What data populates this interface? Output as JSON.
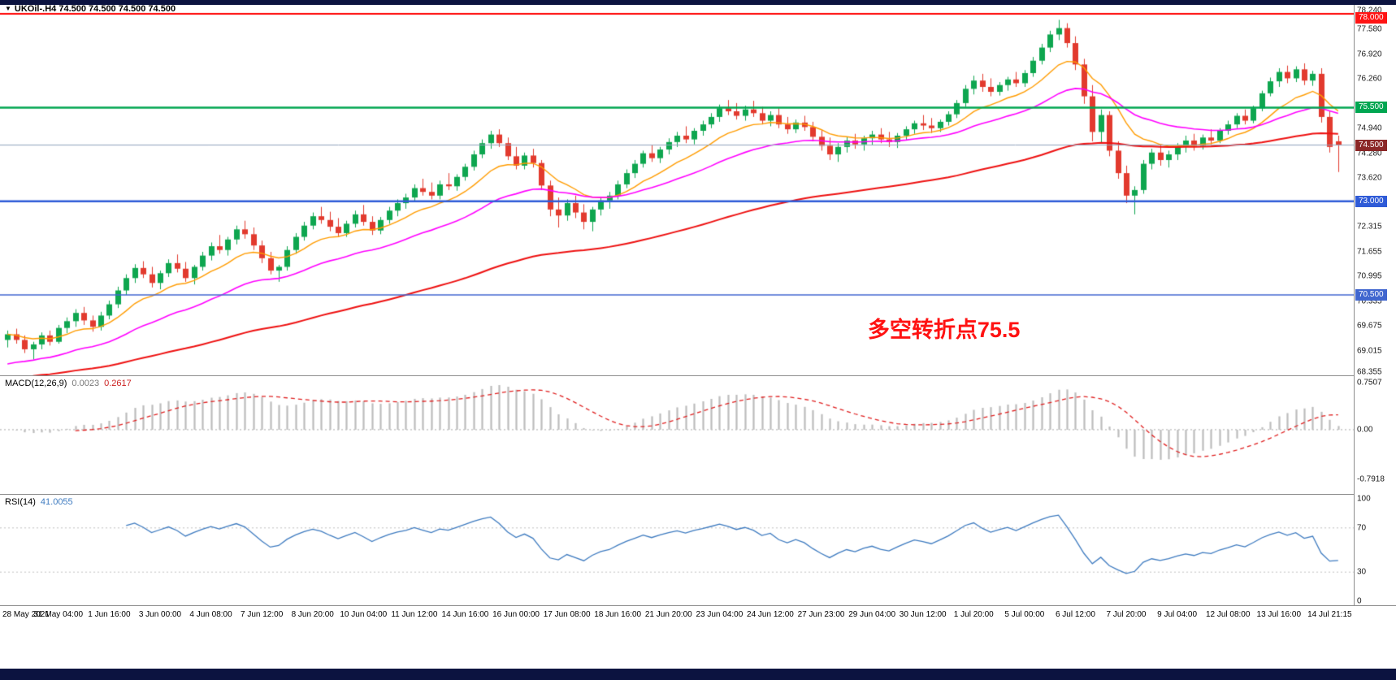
{
  "title_overlay": {
    "marker": "▼",
    "symbol": "UKOil-.H4",
    "quotes": "74.500 74.500 74.500 74.500"
  },
  "chart_data": {
    "type": "candlestick+indicators",
    "symbol": "UKOil-.H4",
    "timeframe": "H4",
    "price": {
      "ylim": [
        68.355,
        78.24
      ],
      "axis_labels": [
        78.24,
        77.58,
        76.92,
        76.26,
        74.94,
        74.28,
        73.62,
        72.315,
        71.655,
        70.995,
        70.335,
        69.675,
        69.015,
        68.355
      ],
      "levels": [
        {
          "value": 78.0,
          "label": "78.000",
          "color": "#ff0000",
          "badge": "#ff1414",
          "width": 2
        },
        {
          "value": 75.5,
          "label": "75.500",
          "color": "#00a651",
          "badge": "#00a651",
          "width": 2.5
        },
        {
          "value": 74.5,
          "label": "74.500",
          "color": "#90a2bd",
          "badge": "#8b2727",
          "width": 1
        },
        {
          "value": 73.0,
          "label": "73.000",
          "color": "#2f5bd7",
          "badge": "#2f5bd7",
          "width": 2.5
        },
        {
          "value": 70.5,
          "label": "70.500",
          "color": "#4066cf",
          "badge": "#4066cf",
          "width": 1.5
        }
      ],
      "ma": [
        {
          "period": 11,
          "color": "#ff9c00",
          "width": 1.4,
          "seed": null
        },
        {
          "period": 28,
          "color": "#ff00ff",
          "width": 1.6,
          "seed": 68.6
        },
        {
          "period": 85,
          "color": "#ee1111",
          "width": 2.0,
          "seed": 68.25
        }
      ],
      "up_color": "#0ea64f",
      "down_color": "#e23a2e",
      "candles": [
        [
          69.3,
          69.55,
          69.1,
          69.45
        ],
        [
          69.45,
          69.6,
          69.2,
          69.3
        ],
        [
          69.3,
          69.42,
          68.95,
          69.05
        ],
        [
          69.05,
          69.25,
          68.78,
          69.18
        ],
        [
          69.18,
          69.5,
          69.05,
          69.42
        ],
        [
          69.42,
          69.55,
          69.15,
          69.25
        ],
        [
          69.25,
          69.7,
          69.2,
          69.62
        ],
        [
          69.62,
          69.9,
          69.48,
          69.8
        ],
        [
          69.8,
          70.12,
          69.65,
          70.02
        ],
        [
          70.02,
          70.18,
          69.7,
          69.82
        ],
        [
          69.82,
          69.95,
          69.52,
          69.65
        ],
        [
          69.65,
          70.05,
          69.55,
          69.95
        ],
        [
          69.95,
          70.35,
          69.85,
          70.25
        ],
        [
          70.25,
          70.72,
          70.15,
          70.62
        ],
        [
          70.62,
          71.05,
          70.5,
          70.95
        ],
        [
          70.95,
          71.32,
          70.82,
          71.22
        ],
        [
          71.22,
          71.4,
          70.95,
          71.05
        ],
        [
          71.05,
          71.25,
          70.7,
          70.82
        ],
        [
          70.82,
          71.15,
          70.65,
          71.08
        ],
        [
          71.08,
          71.45,
          70.98,
          71.35
        ],
        [
          71.35,
          71.58,
          71.1,
          71.2
        ],
        [
          71.2,
          71.38,
          70.85,
          70.95
        ],
        [
          70.95,
          71.3,
          70.78,
          71.25
        ],
        [
          71.25,
          71.65,
          71.15,
          71.55
        ],
        [
          71.55,
          71.9,
          71.42,
          71.8
        ],
        [
          71.8,
          72.1,
          71.6,
          71.7
        ],
        [
          71.7,
          72.05,
          71.55,
          71.98
        ],
        [
          71.98,
          72.35,
          71.85,
          72.25
        ],
        [
          72.25,
          72.48,
          72.0,
          72.12
        ],
        [
          72.12,
          72.3,
          71.7,
          71.82
        ],
        [
          71.82,
          71.95,
          71.35,
          71.48
        ],
        [
          71.48,
          71.65,
          71.05,
          71.15
        ],
        [
          71.15,
          71.3,
          70.85,
          71.25
        ],
        [
          71.25,
          71.8,
          71.15,
          71.7
        ],
        [
          71.7,
          72.15,
          71.6,
          72.05
        ],
        [
          72.05,
          72.45,
          71.95,
          72.35
        ],
        [
          72.35,
          72.7,
          72.25,
          72.6
        ],
        [
          72.6,
          72.85,
          72.4,
          72.5
        ],
        [
          72.5,
          72.72,
          72.2,
          72.32
        ],
        [
          72.32,
          72.55,
          72.05,
          72.15
        ],
        [
          72.15,
          72.48,
          72.05,
          72.4
        ],
        [
          72.4,
          72.75,
          72.3,
          72.65
        ],
        [
          72.65,
          72.9,
          72.35,
          72.45
        ],
        [
          72.45,
          72.6,
          72.1,
          72.22
        ],
        [
          72.22,
          72.58,
          72.12,
          72.5
        ],
        [
          72.5,
          72.85,
          72.4,
          72.75
        ],
        [
          72.75,
          73.05,
          72.6,
          72.95
        ],
        [
          72.95,
          73.2,
          72.8,
          73.1
        ],
        [
          73.1,
          73.45,
          73.0,
          73.35
        ],
        [
          73.35,
          73.6,
          73.15,
          73.25
        ],
        [
          73.25,
          73.5,
          73.05,
          73.15
        ],
        [
          73.15,
          73.55,
          73.05,
          73.45
        ],
        [
          73.45,
          73.75,
          73.3,
          73.4
        ],
        [
          73.4,
          73.72,
          73.28,
          73.65
        ],
        [
          73.65,
          74.0,
          73.55,
          73.92
        ],
        [
          73.92,
          74.35,
          73.82,
          74.25
        ],
        [
          74.25,
          74.65,
          74.15,
          74.55
        ],
        [
          74.55,
          74.88,
          74.4,
          74.78
        ],
        [
          74.78,
          74.92,
          74.45,
          74.55
        ],
        [
          74.55,
          74.7,
          74.1,
          74.2
        ],
        [
          74.2,
          74.45,
          73.85,
          73.95
        ],
        [
          73.95,
          74.3,
          73.85,
          74.22
        ],
        [
          74.22,
          74.4,
          73.9,
          74.02
        ],
        [
          74.02,
          74.1,
          73.3,
          73.42
        ],
        [
          73.42,
          73.55,
          72.6,
          72.78
        ],
        [
          72.78,
          73.1,
          72.3,
          72.62
        ],
        [
          72.62,
          73.05,
          72.48,
          72.95
        ],
        [
          72.95,
          73.15,
          72.55,
          72.7
        ],
        [
          72.7,
          72.92,
          72.25,
          72.45
        ],
        [
          72.45,
          72.85,
          72.2,
          72.78
        ],
        [
          72.78,
          73.1,
          72.62,
          73.02
        ],
        [
          73.02,
          73.25,
          72.8,
          73.15
        ],
        [
          73.15,
          73.55,
          73.05,
          73.45
        ],
        [
          73.45,
          73.85,
          73.35,
          73.75
        ],
        [
          73.75,
          74.1,
          73.62,
          74.0
        ],
        [
          74.0,
          74.35,
          73.9,
          74.28
        ],
        [
          74.28,
          74.5,
          74.05,
          74.15
        ],
        [
          74.15,
          74.45,
          74.02,
          74.38
        ],
        [
          74.38,
          74.68,
          74.25,
          74.58
        ],
        [
          74.58,
          74.85,
          74.45,
          74.75
        ],
        [
          74.75,
          75.0,
          74.55,
          74.65
        ],
        [
          74.65,
          74.95,
          74.52,
          74.88
        ],
        [
          74.88,
          75.15,
          74.75,
          75.05
        ],
        [
          75.05,
          75.35,
          74.95,
          75.25
        ],
        [
          75.25,
          75.58,
          75.12,
          75.48
        ],
        [
          75.48,
          75.7,
          75.3,
          75.4
        ],
        [
          75.4,
          75.62,
          75.18,
          75.28
        ],
        [
          75.28,
          75.55,
          75.15,
          75.45
        ],
        [
          75.45,
          75.68,
          75.25,
          75.35
        ],
        [
          75.35,
          75.52,
          75.05,
          75.15
        ],
        [
          75.15,
          75.4,
          75.0,
          75.3
        ],
        [
          75.3,
          75.48,
          74.95,
          75.05
        ],
        [
          75.05,
          75.25,
          74.8,
          74.92
        ],
        [
          74.92,
          75.18,
          74.82,
          75.1
        ],
        [
          75.1,
          75.28,
          74.88,
          74.98
        ],
        [
          74.98,
          75.12,
          74.6,
          74.72
        ],
        [
          74.72,
          74.9,
          74.35,
          74.48
        ],
        [
          74.48,
          74.7,
          74.1,
          74.25
        ],
        [
          74.25,
          74.55,
          74.05,
          74.45
        ],
        [
          74.45,
          74.72,
          74.3,
          74.62
        ],
        [
          74.62,
          74.8,
          74.4,
          74.52
        ],
        [
          74.52,
          74.75,
          74.35,
          74.68
        ],
        [
          74.68,
          74.88,
          74.5,
          74.78
        ],
        [
          74.78,
          74.95,
          74.55,
          74.65
        ],
        [
          74.65,
          74.85,
          74.45,
          74.58
        ],
        [
          74.58,
          74.82,
          74.42,
          74.75
        ],
        [
          74.75,
          75.0,
          74.62,
          74.92
        ],
        [
          74.92,
          75.15,
          74.8,
          75.08
        ],
        [
          75.08,
          75.3,
          74.9,
          75.02
        ],
        [
          75.02,
          75.22,
          74.82,
          74.95
        ],
        [
          74.95,
          75.18,
          74.85,
          75.12
        ],
        [
          75.12,
          75.4,
          75.02,
          75.32
        ],
        [
          75.32,
          75.7,
          75.22,
          75.62
        ],
        [
          75.62,
          76.1,
          75.52,
          76.0
        ],
        [
          76.0,
          76.35,
          75.85,
          76.22
        ],
        [
          76.22,
          76.4,
          75.92,
          76.05
        ],
        [
          76.05,
          76.28,
          75.8,
          75.92
        ],
        [
          75.92,
          76.18,
          75.82,
          76.1
        ],
        [
          76.1,
          76.32,
          75.95,
          76.25
        ],
        [
          76.25,
          76.45,
          76.05,
          76.15
        ],
        [
          76.15,
          76.5,
          76.05,
          76.42
        ],
        [
          76.42,
          76.85,
          76.32,
          76.75
        ],
        [
          76.75,
          77.2,
          76.65,
          77.1
        ],
        [
          77.1,
          77.55,
          76.98,
          77.45
        ],
        [
          77.45,
          77.84,
          77.3,
          77.62
        ],
        [
          77.62,
          77.75,
          77.1,
          77.22
        ],
        [
          77.22,
          77.4,
          76.5,
          76.65
        ],
        [
          76.65,
          76.8,
          75.6,
          75.8
        ],
        [
          75.8,
          76.1,
          74.6,
          74.85
        ],
        [
          74.85,
          75.45,
          74.55,
          75.3
        ],
        [
          75.3,
          75.4,
          74.2,
          74.35
        ],
        [
          74.35,
          74.6,
          73.6,
          73.75
        ],
        [
          73.75,
          73.95,
          72.95,
          73.15
        ],
        [
          73.15,
          73.4,
          72.65,
          73.3
        ],
        [
          73.3,
          74.1,
          73.2,
          74.0
        ],
        [
          74.0,
          74.4,
          73.85,
          74.3
        ],
        [
          74.3,
          74.5,
          73.95,
          74.1
        ],
        [
          74.1,
          74.35,
          73.9,
          74.25
        ],
        [
          74.25,
          74.55,
          74.1,
          74.45
        ],
        [
          74.45,
          74.75,
          74.3,
          74.62
        ],
        [
          74.62,
          74.8,
          74.35,
          74.48
        ],
        [
          74.48,
          74.78,
          74.38,
          74.7
        ],
        [
          74.7,
          74.92,
          74.52,
          74.62
        ],
        [
          74.62,
          74.95,
          74.55,
          74.88
        ],
        [
          74.88,
          75.15,
          74.78,
          75.05
        ],
        [
          75.05,
          75.35,
          74.95,
          75.28
        ],
        [
          75.28,
          75.45,
          75.05,
          75.15
        ],
        [
          75.15,
          75.55,
          75.08,
          75.48
        ],
        [
          75.48,
          75.95,
          75.4,
          75.88
        ],
        [
          75.88,
          76.3,
          75.8,
          76.2
        ],
        [
          76.2,
          76.55,
          76.05,
          76.45
        ],
        [
          76.45,
          76.62,
          76.15,
          76.28
        ],
        [
          76.28,
          76.6,
          76.18,
          76.52
        ],
        [
          76.52,
          76.68,
          76.1,
          76.22
        ],
        [
          76.22,
          76.48,
          76.08,
          76.4
        ],
        [
          76.4,
          76.55,
          75.1,
          75.25
        ],
        [
          75.25,
          75.42,
          74.3,
          74.45
        ],
        [
          74.6,
          74.75,
          73.78,
          74.5
        ]
      ]
    },
    "macd": {
      "label": "MACD(12,26,9)",
      "value_main": "0.0023",
      "value_signal": "0.2617",
      "fast": 12,
      "slow": 26,
      "signal_period": 9,
      "ylim": [
        -1.02,
        0.85
      ],
      "axis": [
        {
          "text": "0.7507",
          "value": 0.7507
        },
        {
          "text": "0.00",
          "value": 0
        },
        {
          "text": "-0.7918",
          "value": -0.7918
        }
      ],
      "hist_color": "#bdbdbd",
      "signal_color": "#e02020",
      "zero_line_color": "#aaaaaa"
    },
    "rsi": {
      "label": "RSI(14)",
      "value": "41.0055",
      "period": 14,
      "ylim": [
        0,
        100
      ],
      "levels": [
        70,
        30
      ],
      "axis": [
        {
          "text": "100",
          "value": 100
        },
        {
          "text": "70",
          "value": 70
        },
        {
          "text": "30",
          "value": 30
        },
        {
          "text": "0",
          "value": 0
        }
      ],
      "line_color": "#3e7bc0",
      "level_color": "#c0c0c0"
    },
    "time_labels": [
      "28 May 2021",
      "31 May 04:00",
      "1 Jun 16:00",
      "3 Jun 00:00",
      "4 Jun 08:00",
      "7 Jun 12:00",
      "8 Jun 20:00",
      "10 Jun 04:00",
      "11 Jun 12:00",
      "14 Jun 16:00",
      "16 Jun 00:00",
      "17 Jun 08:00",
      "18 Jun 16:00",
      "21 Jun 20:00",
      "23 Jun 04:00",
      "24 Jun 12:00",
      "27 Jun 23:00",
      "29 Jun 04:00",
      "30 Jun 12:00",
      "1 Jul 20:00",
      "5 Jul 00:00",
      "6 Jul 12:00",
      "7 Jul 20:00",
      "9 Jul 04:00",
      "12 Jul 08:00",
      "13 Jul 16:00",
      "14 Jul 21:15"
    ],
    "bars_per_label": 6,
    "annotation": {
      "text": "多空转折点75.5",
      "color": "#ff1212",
      "x_frac": 0.641,
      "price": 69.87
    }
  }
}
